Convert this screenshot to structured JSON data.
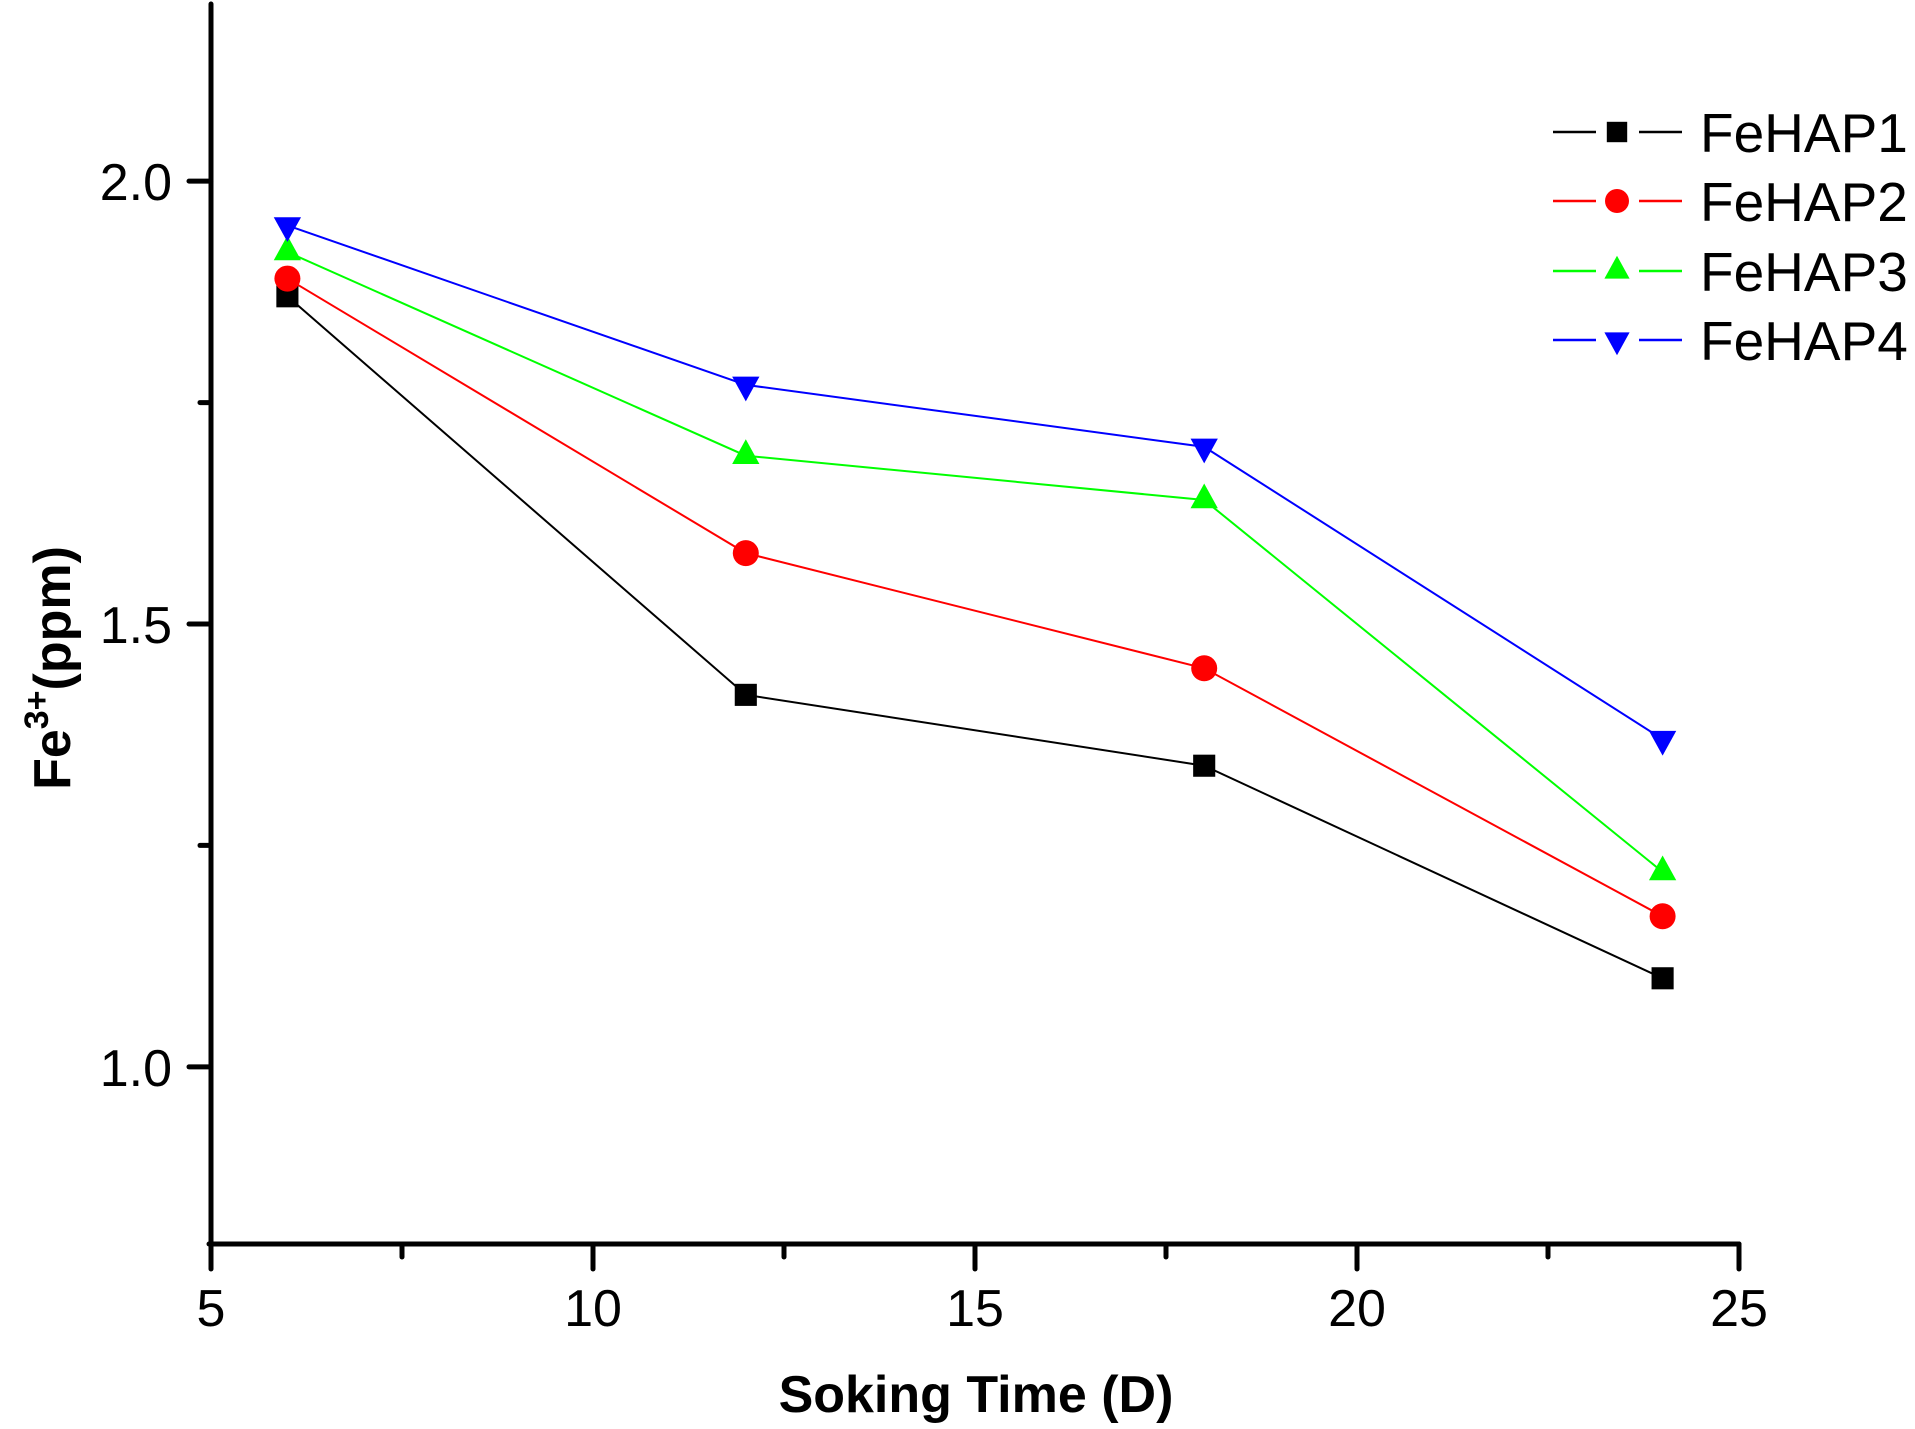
{
  "chart_data": {
    "type": "line",
    "title": "",
    "xlabel": "Soking Time (D)",
    "ylabel": {
      "base": "Fe",
      "superscript": "3+",
      "suffix": "(ppm)"
    },
    "xlim": [
      5,
      25
    ],
    "ylim": [
      0.8,
      2.2
    ],
    "x_ticks": [
      5,
      10,
      15,
      20,
      25
    ],
    "x_tick_labels": [
      "5",
      "10",
      "15",
      "20",
      "25"
    ],
    "x_minor_ticks": [
      7.5,
      12.5,
      17.5,
      22.5
    ],
    "y_ticks": [
      1.0,
      1.5,
      2.0
    ],
    "y_tick_labels": [
      "1.0",
      "1.5",
      "2.0"
    ],
    "y_minor_ticks": [
      1.25,
      1.75
    ],
    "grid": false,
    "legend_position": "top-right",
    "x": [
      6,
      12,
      18,
      24
    ],
    "series": [
      {
        "name": "FeHAP1",
        "color": "#000000",
        "marker": "square",
        "values": [
          1.87,
          1.42,
          1.34,
          1.1
        ]
      },
      {
        "name": "FeHAP2",
        "color": "#ff0000",
        "marker": "circle",
        "values": [
          1.89,
          1.58,
          1.45,
          1.17
        ]
      },
      {
        "name": "FeHAP3",
        "color": "#00ff00",
        "marker": "triangle-up",
        "values": [
          1.92,
          1.69,
          1.64,
          1.22
        ]
      },
      {
        "name": "FeHAP4",
        "color": "#0000ff",
        "marker": "triangle-down",
        "values": [
          1.95,
          1.77,
          1.7,
          1.37
        ]
      }
    ]
  }
}
